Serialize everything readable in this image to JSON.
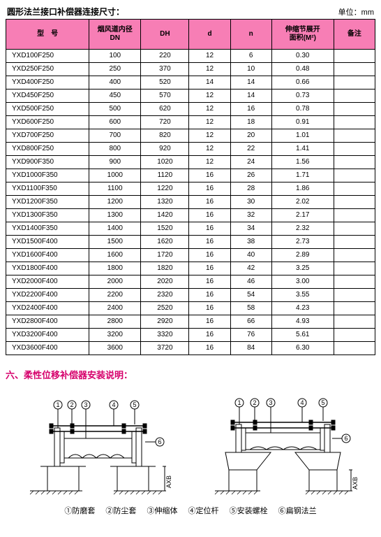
{
  "header": {
    "title": "圆形法兰接口补偿器连接尺寸：",
    "unit": "单位：mm"
  },
  "table": {
    "columns": [
      "型　号",
      "烟风道内径\nDN",
      "DH",
      "d",
      "n",
      "伸缩节展开\n面积(M²)",
      "备注"
    ],
    "col_widths": [
      "110px",
      "65px",
      "60px",
      "50px",
      "50px",
      "80px",
      "50px"
    ],
    "rows": [
      [
        "YXD100F250",
        "100",
        "220",
        "12",
        "6",
        "0.30",
        ""
      ],
      [
        "YXD250F250",
        "250",
        "370",
        "12",
        "10",
        "0.48",
        ""
      ],
      [
        "YXD400F250",
        "400",
        "520",
        "14",
        "14",
        "0.66",
        ""
      ],
      [
        "YXD450F250",
        "450",
        "570",
        "12",
        "14",
        "0.73",
        ""
      ],
      [
        "YXD500F250",
        "500",
        "620",
        "12",
        "16",
        "0.78",
        ""
      ],
      [
        "YXD600F250",
        "600",
        "720",
        "12",
        "18",
        "0.91",
        ""
      ],
      [
        "YXD700F250",
        "700",
        "820",
        "12",
        "20",
        "1.01",
        ""
      ],
      [
        "YXD800F250",
        "800",
        "920",
        "12",
        "22",
        "1.41",
        ""
      ],
      [
        "YXD900F350",
        "900",
        "1020",
        "12",
        "24",
        "1.56",
        ""
      ],
      [
        "YXD1000F350",
        "1000",
        "1120",
        "16",
        "26",
        "1.71",
        ""
      ],
      [
        "YXD1100F350",
        "1100",
        "1220",
        "16",
        "28",
        "1.86",
        ""
      ],
      [
        "YXD1200F350",
        "1200",
        "1320",
        "16",
        "30",
        "2.02",
        ""
      ],
      [
        "YXD1300F350",
        "1300",
        "1420",
        "16",
        "32",
        "2.17",
        ""
      ],
      [
        "YXD1400F350",
        "1400",
        "1520",
        "16",
        "34",
        "2.32",
        ""
      ],
      [
        "YXD1500F400",
        "1500",
        "1620",
        "16",
        "38",
        "2.73",
        ""
      ],
      [
        "YXD1600F400",
        "1600",
        "1720",
        "16",
        "40",
        "2.89",
        ""
      ],
      [
        "YXD1800F400",
        "1800",
        "1820",
        "16",
        "42",
        "3.25",
        ""
      ],
      [
        "YXD2000F400",
        "2000",
        "2020",
        "16",
        "46",
        "3.00",
        ""
      ],
      [
        "YXD2200F400",
        "2200",
        "2320",
        "16",
        "54",
        "3.55",
        ""
      ],
      [
        "YXD2400F400",
        "2400",
        "2520",
        "16",
        "58",
        "4.23",
        ""
      ],
      [
        "YXD2800F400",
        "2800",
        "2920",
        "16",
        "66",
        "4.93",
        ""
      ],
      [
        "YXD3200F400",
        "3200",
        "3320",
        "16",
        "76",
        "5.61",
        ""
      ],
      [
        "YXD3600F400",
        "3600",
        "3720",
        "16",
        "84",
        "6.30",
        ""
      ]
    ]
  },
  "section": {
    "title": "六、柔性位移补偿器安装说明："
  },
  "legend": {
    "items": [
      "①防磨套",
      "②防尘套",
      "③伸缩体",
      "④定位杆",
      "⑤安装螺栓",
      "⑥扁钢法兰"
    ]
  },
  "diagram": {
    "callouts": [
      "1",
      "2",
      "3",
      "4",
      "5",
      "6"
    ],
    "axis_label": "AXB",
    "stroke": "#000000",
    "hatch": "#000000"
  }
}
